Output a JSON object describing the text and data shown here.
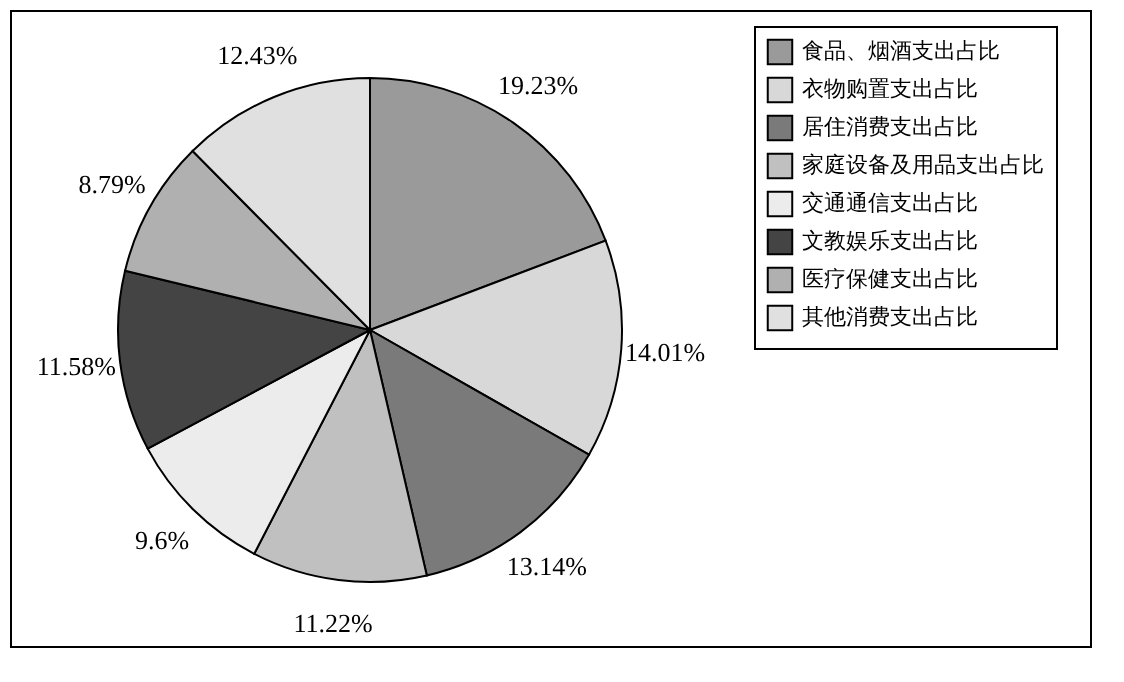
{
  "chart_data": {
    "type": "pie",
    "categories": [
      "食品、烟酒支出占比",
      "衣物购置支出占比",
      "居住消费支出占比",
      "家庭设备及用品支出占比",
      "交通通信支出占比",
      "文教娱乐支出占比",
      "医疗保健支出占比",
      "其他消费支出占比"
    ],
    "values": [
      19.23,
      14.01,
      13.14,
      11.22,
      9.6,
      11.58,
      8.79,
      12.43
    ],
    "value_labels": [
      "19.23%",
      "14.01%",
      "13.14%",
      "11.22%",
      "9.6%",
      "11.58%",
      "8.79%",
      "12.43%"
    ],
    "colors": [
      "#9a9a9a",
      "#d8d8d8",
      "#7a7a7a",
      "#c0c0c0",
      "#ececec",
      "#444444",
      "#b0b0b0",
      "#e0e0e0"
    ],
    "legend": "top right"
  }
}
